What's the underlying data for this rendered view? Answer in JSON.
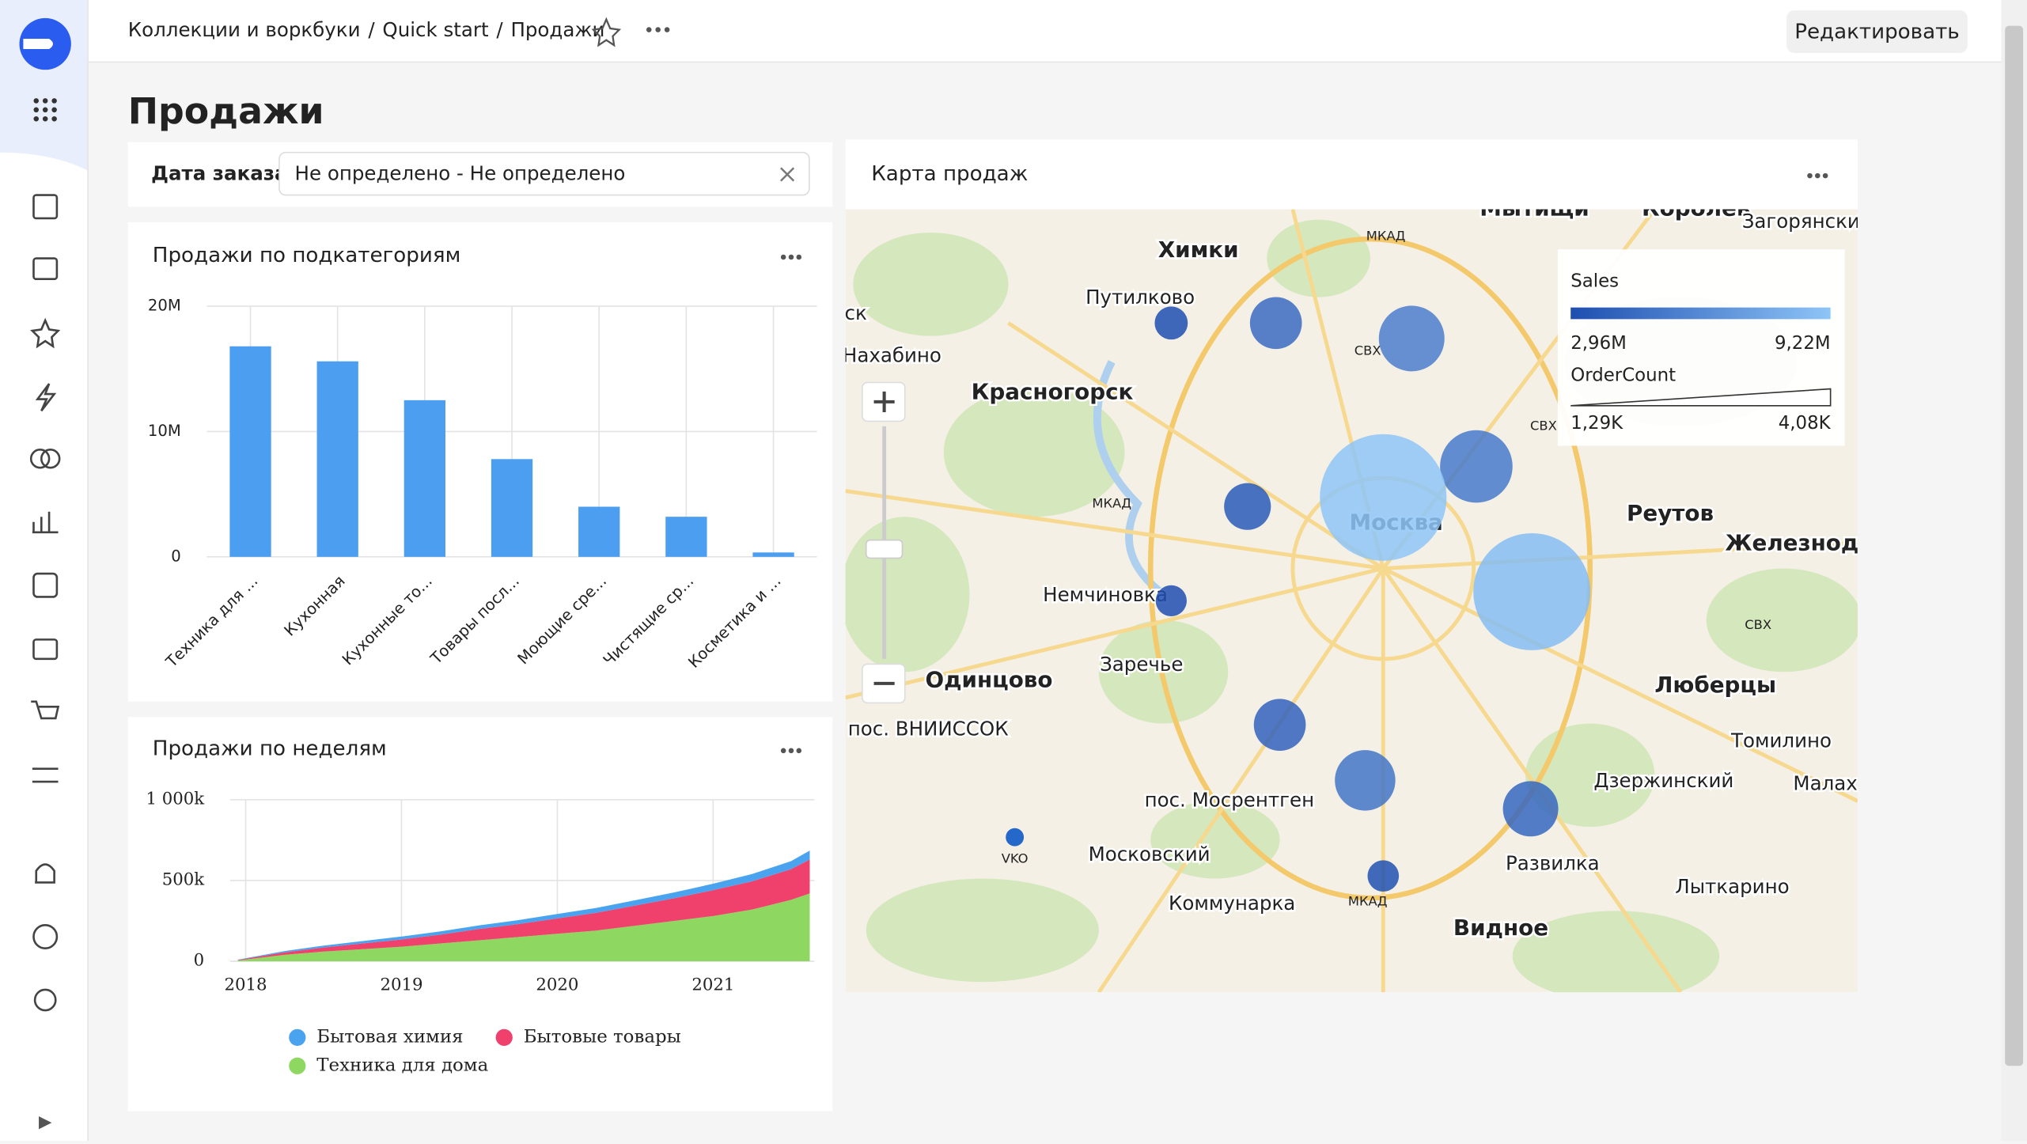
{
  "header": {
    "breadcrumbs": [
      "Коллекции и воркбуки",
      "Quick start",
      "Продажи"
    ],
    "breadcrumb_separator": "/",
    "edit_button": "Редактировать"
  },
  "page_title": "Продажи",
  "filter": {
    "label": "Дата заказа",
    "value": "Не определено - Не определено"
  },
  "widgets": [
    {
      "title": "Продажи по подкатегориям",
      "chart_data": {
        "type": "bar",
        "categories": [
          "Техника для ...",
          "Кухонная",
          "Кухонные то...",
          "Товары посл...",
          "Моющие сре...",
          "Чистящие ср...",
          "Косметика и ..."
        ],
        "values": [
          16800000,
          15600000,
          12500000,
          7800000,
          4000000,
          3200000,
          350000
        ],
        "color": "#4c9ef0",
        "ylim": [
          0,
          20000000
        ],
        "yticks": [
          0,
          {
            "value": 10000000,
            "label": "10M"
          },
          {
            "value": 20000000,
            "label": "20M"
          }
        ],
        "grid": true
      }
    },
    {
      "title": "Продажи по неделям",
      "chart_data": {
        "type": "stacked_area",
        "x": [
          2017.95,
          2018.25,
          2018.5,
          2018.75,
          2019,
          2019.25,
          2019.5,
          2019.75,
          2020,
          2020.25,
          2020.5,
          2020.75,
          2021,
          2021.25,
          2021.5,
          2021.62
        ],
        "xlim": [
          2017.9,
          2021.65
        ],
        "xticks": [
          2018,
          2019,
          2020,
          2021
        ],
        "ylim": [
          0,
          1000000
        ],
        "yticks": [
          0,
          {
            "value": 500000,
            "label": "500k"
          },
          {
            "value": 1000000,
            "label": "1 000k"
          }
        ],
        "grid": true,
        "legend": "bottom",
        "series": [
          {
            "name": "Бытовая химия",
            "color": "#4aa3ef",
            "values": [
              2000,
              8000,
              12000,
              15000,
              18000,
              20000,
              22000,
              25000,
              28000,
              30000,
              33000,
              36000,
              40000,
              45000,
              50000,
              55000
            ]
          },
          {
            "name": "Бытовые товары",
            "color": "#f0416c",
            "values": [
              3000,
              15000,
              25000,
              35000,
              45000,
              55000,
              70000,
              80000,
              95000,
              110000,
              125000,
              140000,
              160000,
              175000,
              190000,
              210000
            ]
          },
          {
            "name": "Техника для дома",
            "color": "#8ed861",
            "values": [
              5000,
              40000,
              60000,
              75000,
              90000,
              110000,
              130000,
              150000,
              170000,
              190000,
              220000,
              250000,
              280000,
              320000,
              380000,
              420000
            ]
          }
        ]
      }
    },
    {
      "title": "Карта продаж",
      "chart_data": {
        "type": "bubble_map",
        "places": [
          "Мытищи",
          "Королёв",
          "Загорянский",
          "Химки",
          "Путилково",
          "ск",
          "Нахабино",
          "Красногорск",
          "Реутов",
          "Железнодо",
          "Немчиновка",
          "Москва",
          "Одинцово",
          "Заречье",
          "пос. ВНИИССОК",
          "Люберцы",
          "Томилино",
          "Дзержинский",
          "Малах",
          "пос. Мосрентген",
          "Московский",
          "Развилка",
          "Лыткарино",
          "Коммунарка",
          "Видное",
          "VKO",
          "МКАД",
          "МКАД",
          "СВХ",
          "СВХ",
          "СВХ",
          "МКАД"
        ],
        "sales": [
          3000000,
          4500000,
          5500000,
          5300000,
          9220000,
          3600000,
          8800000,
          2960000,
          4000000,
          5000000,
          4300000,
          3100000
        ],
        "order_count": [
          1350,
          1900,
          2300,
          2500,
          4080,
          1750,
          3800,
          1290,
          1900,
          2150,
          2000,
          1300
        ],
        "legend": {
          "sales": {
            "title": "Sales",
            "min": {
              "value": 2960000,
              "label": "2,96M"
            },
            "max": {
              "value": 9220000,
              "label": "9,22M"
            },
            "colors": [
              "#1e4eb0",
              "#8ec5f7"
            ]
          },
          "order_count": {
            "title": "OrderCount",
            "min": {
              "value": 1290,
              "label": "1,29K"
            },
            "max": {
              "value": 4080,
              "label": "4,08K"
            }
          }
        }
      }
    }
  ]
}
